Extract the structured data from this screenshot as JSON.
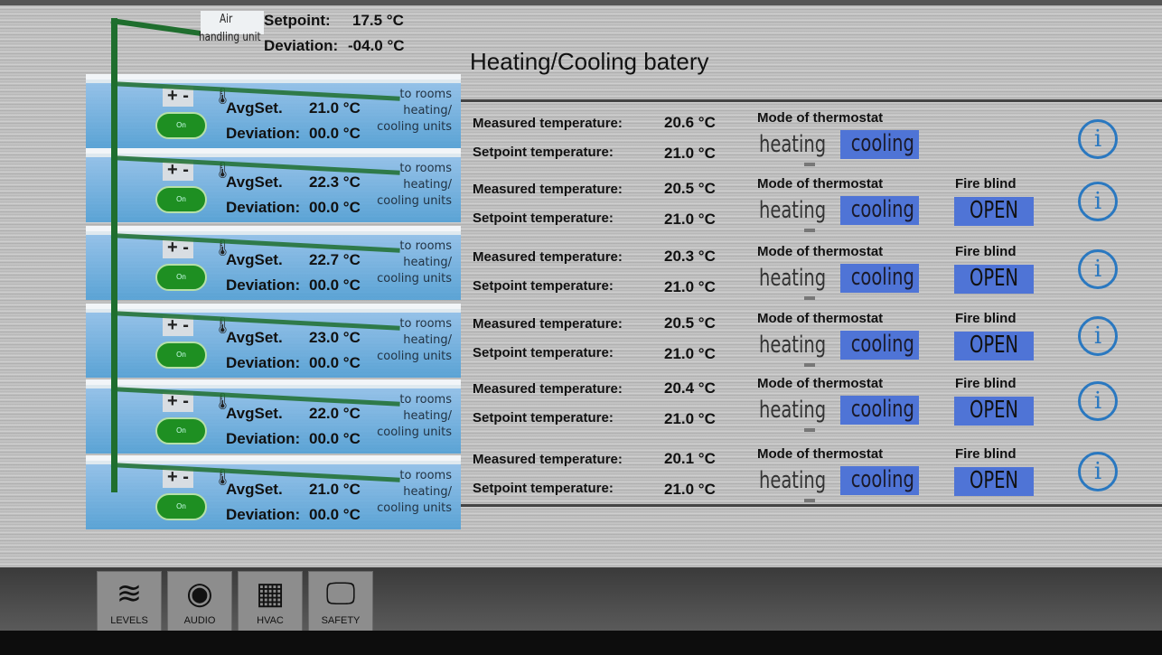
{
  "ahu": {
    "label_line1": "Air",
    "label_line2": "handling unit",
    "setpoint_label": "Setpoint:",
    "setpoint_value": "17.5 °C",
    "deviation_label": "Deviation:",
    "deviation_value": "-04.0 °C"
  },
  "title": "Heating/Cooling batery",
  "floor_labels": {
    "plus": "+",
    "minus": "-",
    "on": "On",
    "avgset": "AvgSet.",
    "deviation": "Deviation:",
    "to_rooms": [
      "to rooms",
      "heating/",
      "cooling units"
    ]
  },
  "floors": [
    {
      "avgset": "21.0 °C",
      "deviation": "00.0 °C"
    },
    {
      "avgset": "22.3 °C",
      "deviation": "00.0 °C"
    },
    {
      "avgset": "22.7 °C",
      "deviation": "00.0 °C"
    },
    {
      "avgset": "23.0 °C",
      "deviation": "00.0 °C"
    },
    {
      "avgset": "22.0 °C",
      "deviation": "00.0 °C"
    },
    {
      "avgset": "21.0 °C",
      "deviation": "00.0 °C"
    }
  ],
  "row_labels": {
    "measured": "Measured temperature:",
    "setpoint": "Setpoint temperature:",
    "mode": "Mode of thermostat",
    "heating": "heating",
    "cooling": "cooling",
    "fire_blind": "Fire blind",
    "open": "OPEN",
    "info": "i"
  },
  "rows": [
    {
      "measured": "20.6 °C",
      "setpoint": "21.0 °C",
      "fire_blind": false,
      "mode": "cooling"
    },
    {
      "measured": "20.5 °C",
      "setpoint": "21.0 °C",
      "fire_blind": true,
      "mode": "cooling"
    },
    {
      "measured": "20.3 °C",
      "setpoint": "21.0 °C",
      "fire_blind": true,
      "mode": "cooling"
    },
    {
      "measured": "20.5 °C",
      "setpoint": "21.0 °C",
      "fire_blind": true,
      "mode": "cooling"
    },
    {
      "measured": "20.4 °C",
      "setpoint": "21.0 °C",
      "fire_blind": true,
      "mode": "cooling"
    },
    {
      "measured": "20.1 °C",
      "setpoint": "21.0 °C",
      "fire_blind": true,
      "mode": "cooling"
    }
  ],
  "nav": [
    {
      "label": "LEVELS",
      "icon": "layers-icon"
    },
    {
      "label": "AUDIO",
      "icon": "speaker-icon"
    },
    {
      "label": "HVAC",
      "icon": "hvac-unit-icon"
    },
    {
      "label": "SAFETY",
      "icon": "monitor-search-icon"
    }
  ],
  "colors": {
    "active_mode": "#4f74d6",
    "on_button": "#1e8f22",
    "pipe": "#1f6e2e",
    "info": "#2a78c0"
  }
}
